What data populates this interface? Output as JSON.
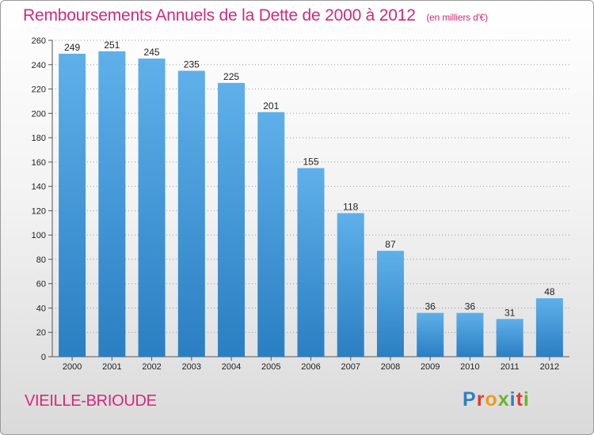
{
  "header": {
    "title": "Remboursements Annuels de la Dette de 2000 à 2012",
    "unit": "(en milliers d'€)"
  },
  "commune": "VIEILLE-BRIOUDE",
  "logo": {
    "text": "Proxiti",
    "colors": [
      "#2e7fc1",
      "#e6392b",
      "#f29a1c",
      "#6ab42d",
      "#2e7fc1",
      "#e6392b",
      "#6ab42d"
    ]
  },
  "colors": {
    "title": "#d4287a",
    "bar_top": "#5fb0ea",
    "bar_bottom": "#2a7fc2",
    "grid": "#9a9a9a"
  },
  "chart_data": {
    "type": "bar",
    "title": "Remboursements Annuels de la Dette de 2000 à 2012",
    "subtitle": "(en milliers d'€)",
    "categories": [
      "2000",
      "2001",
      "2002",
      "2003",
      "2004",
      "2005",
      "2006",
      "2007",
      "2008",
      "2009",
      "2010",
      "2011",
      "2012"
    ],
    "values": [
      249,
      251,
      245,
      235,
      225,
      201,
      155,
      118,
      87,
      36,
      36,
      31,
      48
    ],
    "data_labels": [
      "249",
      "251",
      "245",
      "235",
      "225",
      "201",
      "155",
      "118",
      "87",
      "36",
      "36",
      "31",
      "48"
    ],
    "ylim": [
      0,
      260
    ],
    "yticks": [
      0,
      20,
      40,
      60,
      80,
      100,
      120,
      140,
      160,
      180,
      200,
      220,
      240,
      260
    ],
    "grid": true,
    "legend": "none"
  }
}
